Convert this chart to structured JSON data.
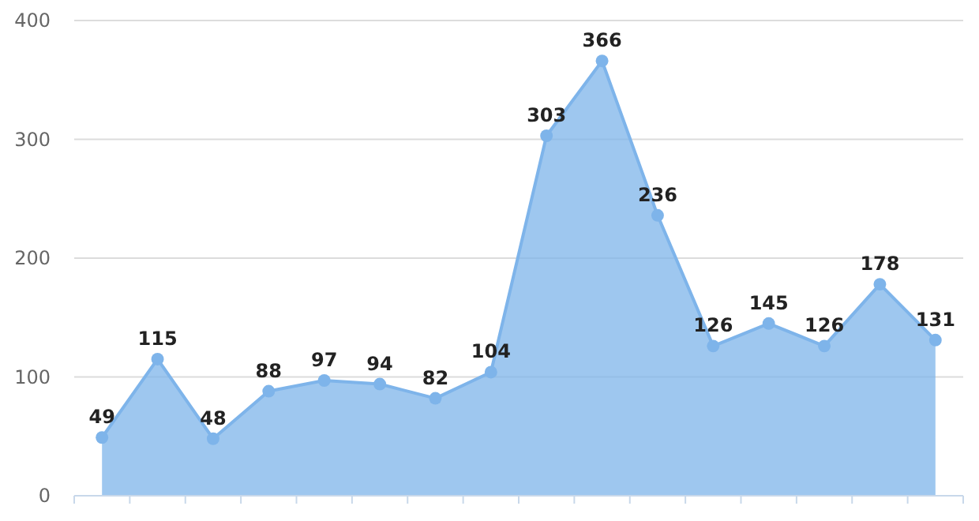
{
  "chart_data": {
    "type": "area",
    "categories": [
      null,
      null,
      null,
      null,
      null,
      null,
      null,
      null,
      null,
      null,
      null,
      null,
      null,
      null,
      null,
      null
    ],
    "series": [
      {
        "color": "#7eb4ea",
        "values": [
          49,
          115,
          48,
          88,
          97,
          94,
          82,
          104,
          303,
          366,
          236,
          126,
          145,
          126,
          178,
          131
        ]
      }
    ],
    "ylim": [
      0,
      400
    ],
    "yticks": [
      0,
      100,
      200,
      300,
      400
    ],
    "grid": "y",
    "data_labels": true,
    "marker": "circle"
  }
}
